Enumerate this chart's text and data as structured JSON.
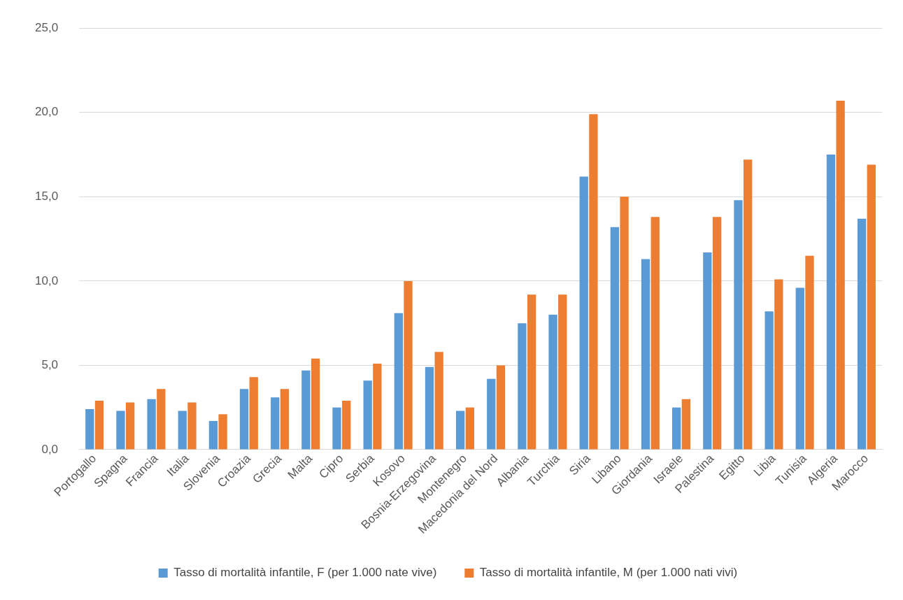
{
  "chart_data": {
    "type": "bar",
    "categories": [
      "Portogallo",
      "Spagna",
      "Francia",
      "Italia",
      "Slovenia",
      "Croazia",
      "Grecia",
      "Malta",
      "Cipro",
      "Serbia",
      "Kosovo",
      "Bosnia-Erzegovina",
      "Montenegro",
      "Macedonia del Nord",
      "Albania",
      "Turchia",
      "Siria",
      "Libano",
      "Giordania",
      "Israele",
      "Palestina",
      "Egitto",
      "Libia",
      "Tunisia",
      "Algeria",
      "Marocco"
    ],
    "series": [
      {
        "name": "Tasso di mortalità infantile, F (per 1.000 nate vive)",
        "color": "#5b9bd5",
        "values": [
          2.4,
          2.3,
          3.0,
          2.3,
          1.7,
          3.6,
          3.1,
          4.7,
          2.5,
          4.1,
          8.1,
          4.9,
          2.3,
          4.2,
          7.5,
          8.0,
          16.2,
          13.2,
          11.3,
          2.5,
          11.7,
          14.8,
          8.2,
          9.6,
          17.5,
          13.7
        ]
      },
      {
        "name": "Tasso di mortalità infantile, M (per 1.000 nati vivi)",
        "color": "#ed7d31",
        "values": [
          2.9,
          2.8,
          3.6,
          2.8,
          2.1,
          4.3,
          3.6,
          5.4,
          2.9,
          5.1,
          10.0,
          5.8,
          2.5,
          5.0,
          9.2,
          9.2,
          19.9,
          15.0,
          13.8,
          3.0,
          13.8,
          17.2,
          10.1,
          11.5,
          20.7,
          16.9
        ]
      }
    ],
    "ylim": [
      0,
      25
    ],
    "yticks": [
      {
        "value": 0,
        "label": "0,0"
      },
      {
        "value": 5,
        "label": "5,0"
      },
      {
        "value": 10,
        "label": "10,0"
      },
      {
        "value": 15,
        "label": "15,0"
      },
      {
        "value": 20,
        "label": "20,0"
      },
      {
        "value": 25,
        "label": "25,0"
      }
    ],
    "grid": "y",
    "legend": "bottom"
  }
}
